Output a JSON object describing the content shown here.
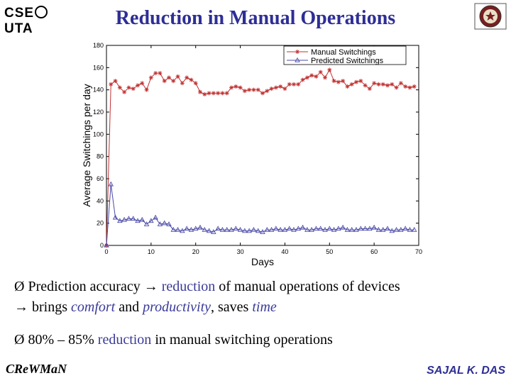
{
  "header": {
    "logo_left_a": "CSE",
    "logo_left_b": "UTA",
    "title": "Reduction in Manual Operations"
  },
  "chart_data": {
    "type": "line",
    "title": "",
    "xlabel": "Days",
    "ylabel": "Average Switchings per day",
    "xlim": [
      0,
      70
    ],
    "ylim": [
      0,
      180
    ],
    "xticks": [
      0,
      10,
      20,
      30,
      40,
      50,
      60,
      70
    ],
    "yticks": [
      0,
      20,
      40,
      60,
      80,
      100,
      120,
      140,
      160,
      180
    ],
    "grid": false,
    "legend_position": "top-right",
    "series": [
      {
        "name": "Manual Switchings",
        "color": "#c03030",
        "marker": "star",
        "x": [
          0,
          1,
          2,
          3,
          4,
          5,
          6,
          7,
          8,
          9,
          10,
          11,
          12,
          13,
          14,
          15,
          16,
          17,
          18,
          19,
          20,
          21,
          22,
          23,
          24,
          25,
          26,
          27,
          28,
          29,
          30,
          31,
          32,
          33,
          34,
          35,
          36,
          37,
          38,
          39,
          40,
          41,
          42,
          43,
          44,
          45,
          46,
          47,
          48,
          49,
          50,
          51,
          52,
          53,
          54,
          55,
          56,
          57,
          58,
          59,
          60,
          61,
          62,
          63,
          64,
          65,
          66,
          67,
          68,
          69
        ],
        "values": [
          0,
          145,
          148,
          142,
          138,
          142,
          141,
          144,
          146,
          140,
          151,
          155,
          155,
          148,
          151,
          148,
          152,
          146,
          151,
          149,
          146,
          138,
          136,
          137,
          137,
          137,
          137,
          137,
          142,
          143,
          142,
          139,
          140,
          140,
          140,
          137,
          139,
          141,
          142,
          143,
          141,
          145,
          145,
          145,
          149,
          151,
          153,
          152,
          156,
          151,
          158,
          148,
          147,
          148,
          143,
          145,
          147,
          148,
          144,
          141,
          146,
          145,
          145,
          144,
          145,
          142,
          146,
          143,
          142,
          143
        ]
      },
      {
        "name": "Predicted Switchings",
        "color": "#4848a8",
        "marker": "triangle",
        "x": [
          0,
          1,
          2,
          3,
          4,
          5,
          6,
          7,
          8,
          9,
          10,
          11,
          12,
          13,
          14,
          15,
          16,
          17,
          18,
          19,
          20,
          21,
          22,
          23,
          24,
          25,
          26,
          27,
          28,
          29,
          30,
          31,
          32,
          33,
          34,
          35,
          36,
          37,
          38,
          39,
          40,
          41,
          42,
          43,
          44,
          45,
          46,
          47,
          48,
          49,
          50,
          51,
          52,
          53,
          54,
          55,
          56,
          57,
          58,
          59,
          60,
          61,
          62,
          63,
          64,
          65,
          66,
          67,
          68,
          69
        ],
        "values": [
          0,
          55,
          25,
          22,
          23,
          24,
          24,
          22,
          23,
          19,
          22,
          25,
          19,
          20,
          19,
          14,
          14,
          13,
          15,
          14,
          15,
          16,
          14,
          13,
          12,
          15,
          14,
          14,
          14,
          15,
          14,
          13,
          13,
          14,
          13,
          12,
          14,
          14,
          15,
          14,
          14,
          15,
          14,
          15,
          16,
          14,
          14,
          15,
          15,
          14,
          15,
          14,
          15,
          16,
          14,
          14,
          14,
          15,
          15,
          15,
          16,
          14,
          14,
          15,
          13,
          14,
          14,
          15,
          14,
          14
        ]
      }
    ]
  },
  "bullets": [
    {
      "mark": "Ø",
      "arrow": "→",
      "t1": "Prediction accuracy ",
      "t2": " reduction",
      "t3": " of manual operations of devices"
    },
    {
      "arrow": "→",
      "t1": " brings ",
      "t2": "comfort",
      "t3": " and ",
      "t4": "productivity",
      "t5": ", saves ",
      "t6": "time"
    },
    {
      "mark": "Ø",
      "t1": " 80% –  85%  ",
      "t2": "reduction",
      "t3": " in manual switching operations"
    }
  ],
  "footer": {
    "left": "CReWMaN",
    "right": "SAJAL K. DAS"
  }
}
